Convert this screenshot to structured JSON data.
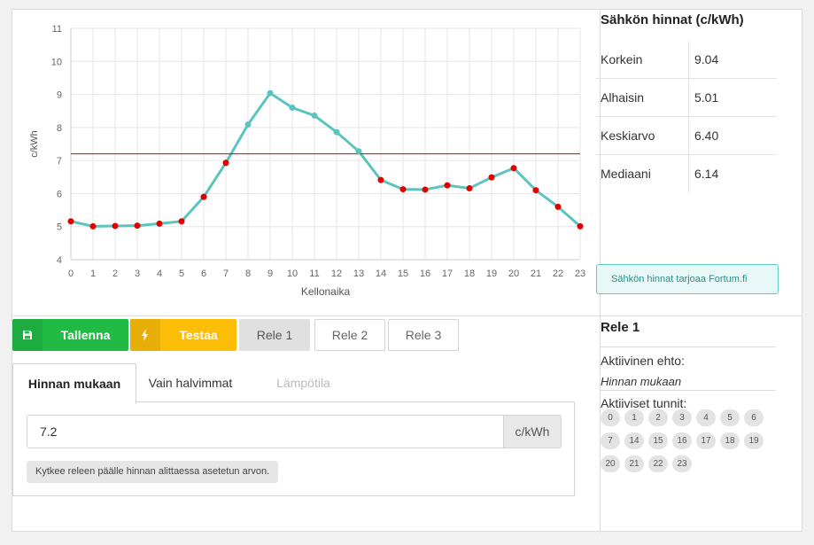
{
  "chart_data": {
    "type": "line",
    "title": "",
    "xlabel": "Kellonaika",
    "ylabel": "c/kWh",
    "x": [
      0,
      1,
      2,
      3,
      4,
      5,
      6,
      7,
      8,
      9,
      10,
      11,
      12,
      13,
      14,
      15,
      16,
      17,
      18,
      19,
      20,
      21,
      22,
      23
    ],
    "series": [
      {
        "values": [
          5.16,
          5.01,
          5.02,
          5.03,
          5.09,
          5.16,
          5.9,
          6.93,
          8.09,
          9.04,
          8.6,
          8.36,
          7.86,
          7.28,
          6.41,
          6.13,
          6.12,
          6.25,
          6.16,
          6.49,
          6.77,
          6.1,
          5.6,
          5.01
        ]
      }
    ],
    "threshold": 7.2,
    "ylim": [
      4,
      11
    ],
    "yticks": [
      4,
      5,
      6,
      7,
      8,
      9,
      10,
      11
    ],
    "grid": true,
    "line_color": "#5bc4bf",
    "threshold_color": "#d00000",
    "point_above_color": "#5bc4bf",
    "point_below_color": "#e00000"
  },
  "stats": {
    "title": "Sähkön hinnat (c/kWh)",
    "rows": [
      {
        "label": "Korkein",
        "value": "9.04"
      },
      {
        "label": "Alhaisin",
        "value": "5.01"
      },
      {
        "label": "Keskiarvo",
        "value": "6.40"
      },
      {
        "label": "Mediaani",
        "value": "6.14"
      }
    ],
    "provider": "Sähkön hinnat tarjoaa Fortum.fi"
  },
  "toolbar": {
    "save_label": "Tallenna",
    "test_label": "Testaa",
    "rele1": "Rele 1",
    "rele2": "Rele 2",
    "rele3": "Rele 3"
  },
  "tabs": {
    "price": "Hinnan mukaan",
    "cheapest": "Vain halvimmat",
    "temperature": "Lämpötila"
  },
  "price_input": {
    "value": "7.2",
    "unit": "c/kWh",
    "hint": "Kytkee releen päälle hinnan alittaessa asetetun arvon."
  },
  "relay": {
    "title": "Rele 1",
    "condition_label": "Aktiivinen ehto:",
    "condition_value": "Hinnan mukaan",
    "hours_label": "Aktiiviset tunnit:",
    "hours": [
      "0",
      "1",
      "2",
      "3",
      "4",
      "5",
      "6",
      "7",
      "14",
      "15",
      "16",
      "17",
      "18",
      "19",
      "20",
      "21",
      "22",
      "23"
    ]
  }
}
